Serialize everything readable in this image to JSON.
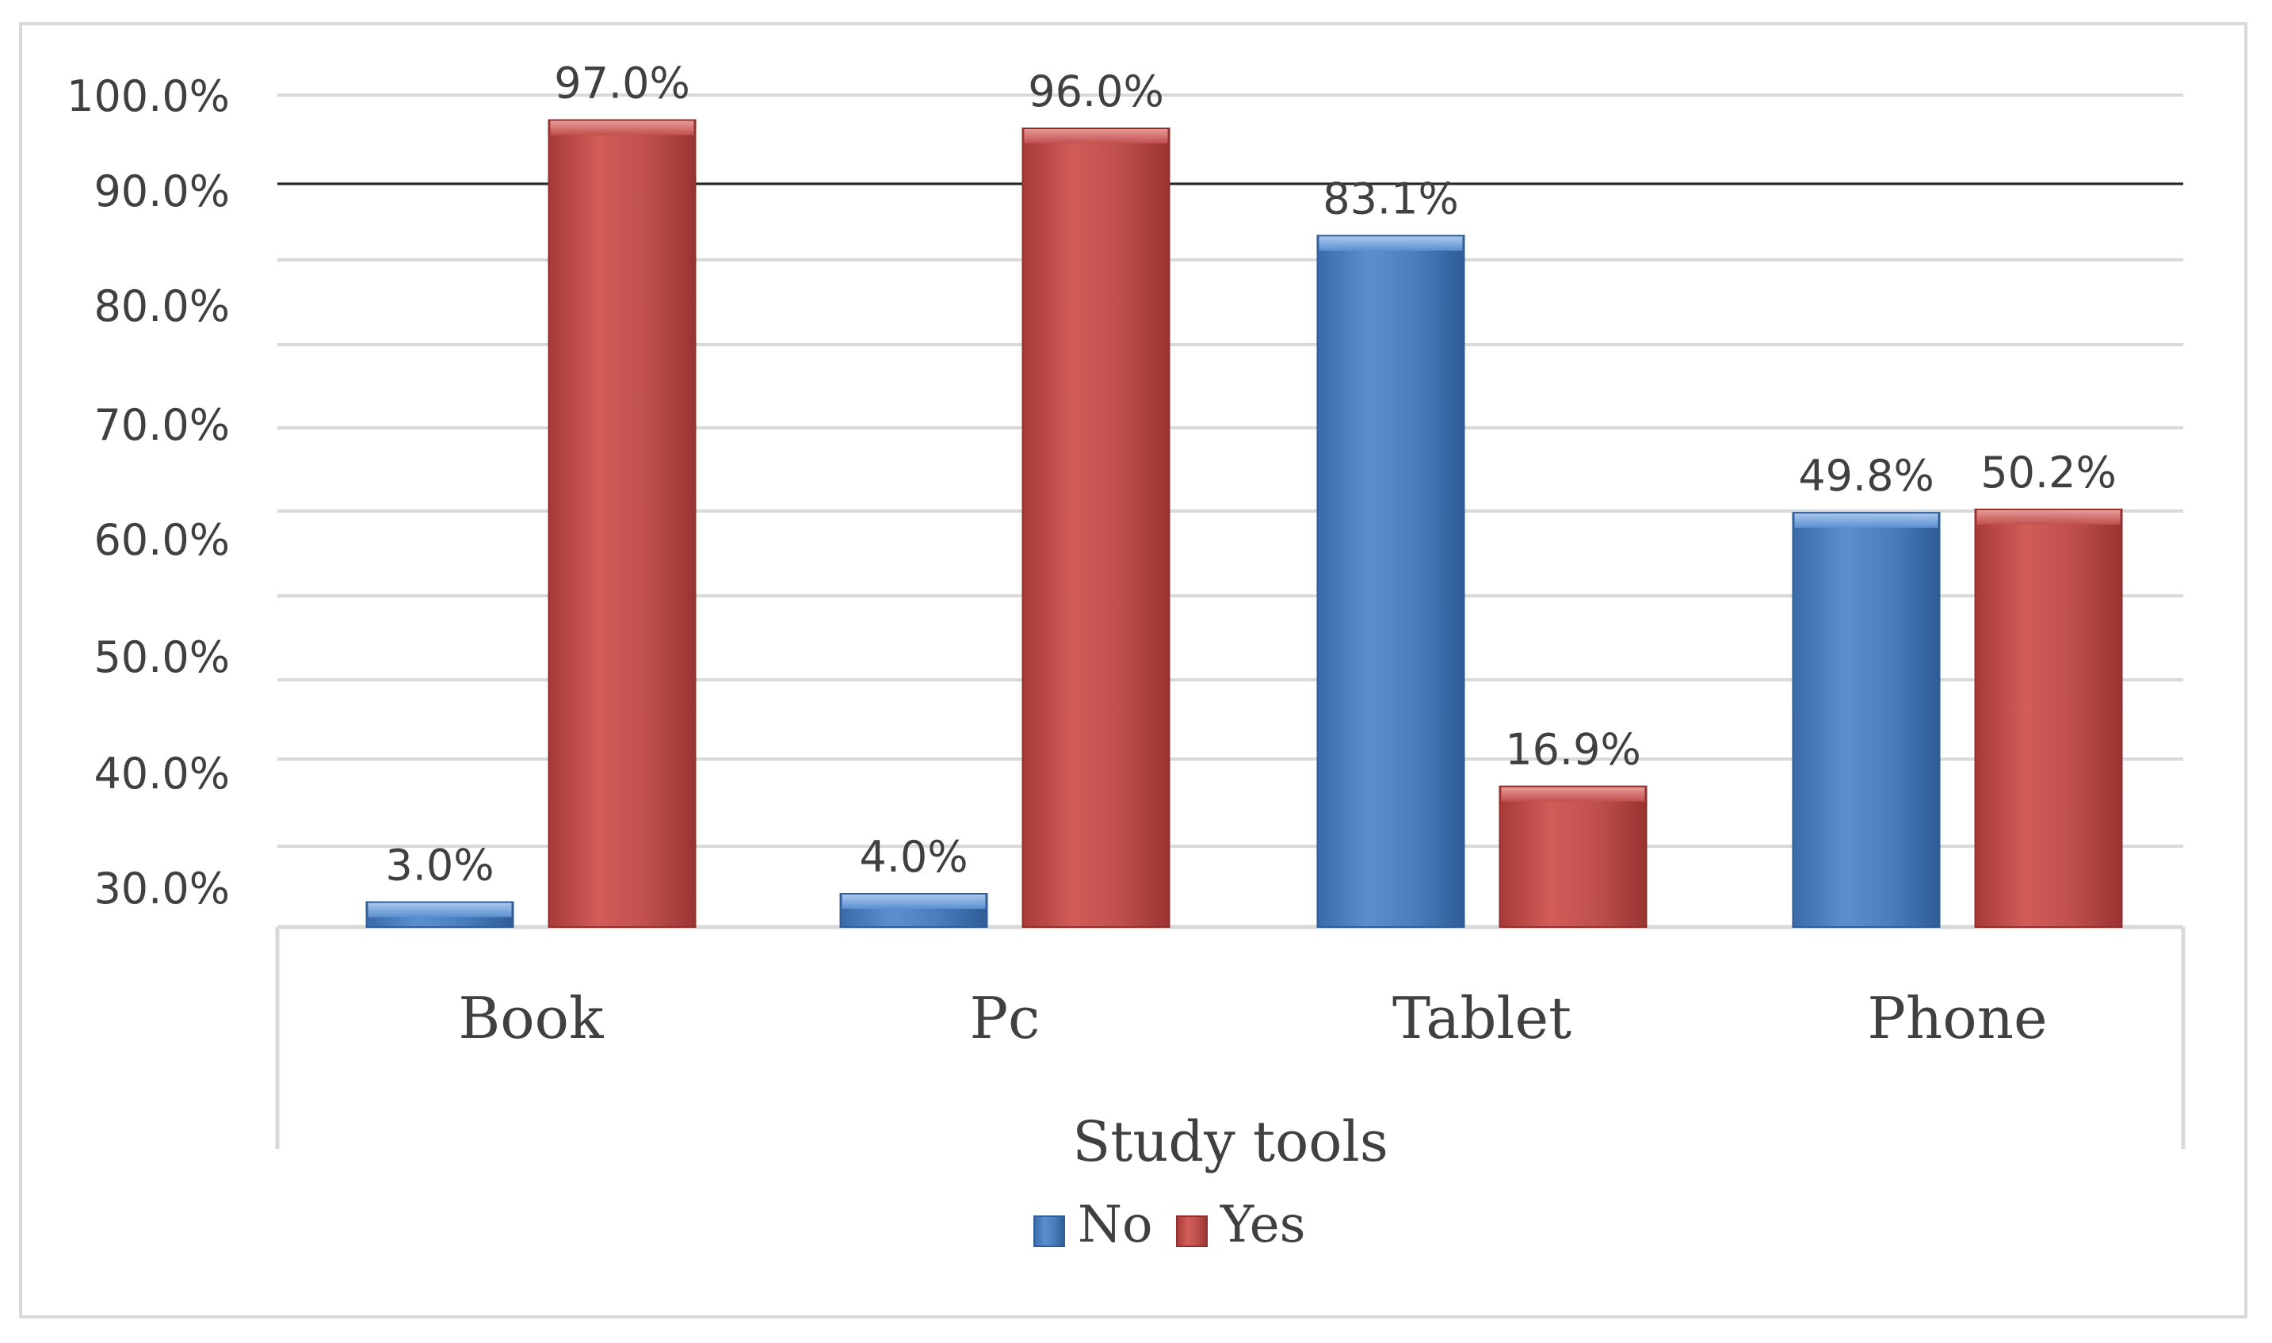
{
  "chart_data": {
    "type": "bar",
    "categories": [
      "Book",
      "Pc",
      "Tablet",
      "Phone"
    ],
    "series": [
      {
        "name": "No",
        "values": [
          3.0,
          4.0,
          83.1,
          49.8
        ],
        "labels": [
          "3.0%",
          "4.0%",
          "83.1%",
          "49.8%"
        ],
        "color": "#4a7ebf"
      },
      {
        "name": "Yes",
        "values": [
          97.0,
          96.0,
          16.9,
          50.2
        ],
        "labels": [
          "97.0%",
          "96.0%",
          "16.9%",
          "50.2%"
        ],
        "color": "#c0504d"
      }
    ],
    "yticks": [
      "30.0%",
      "40.0%",
      "50.0%",
      "60.0%",
      "70.0%",
      "80.0%",
      "90.0%",
      "100.0%"
    ],
    "xlabel": "Study tools",
    "ylabel": "",
    "title": "",
    "legend": "bottom",
    "grid": true
  }
}
